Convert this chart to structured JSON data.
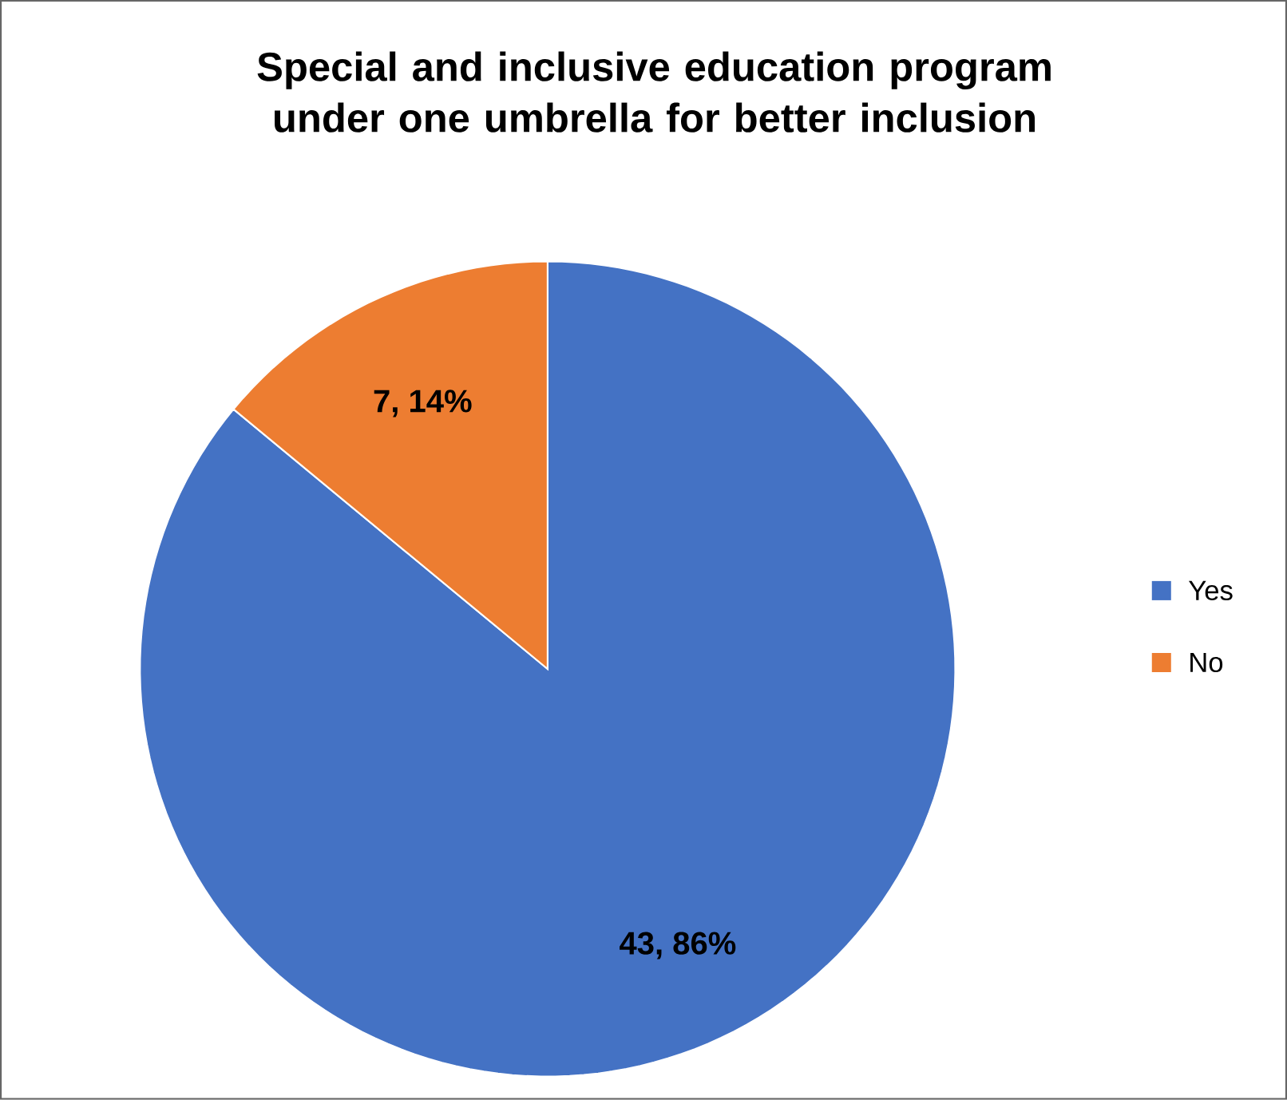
{
  "chart_data": {
    "type": "pie",
    "title": "Special and inclusive education program under one umbrella for better inclusion",
    "categories": [
      "Yes",
      "No"
    ],
    "values": [
      43,
      7
    ],
    "colors": [
      "#4472c4",
      "#ed7d31"
    ],
    "value_labels": [
      "43, 86%",
      "7, 14%"
    ],
    "legend": "right"
  }
}
